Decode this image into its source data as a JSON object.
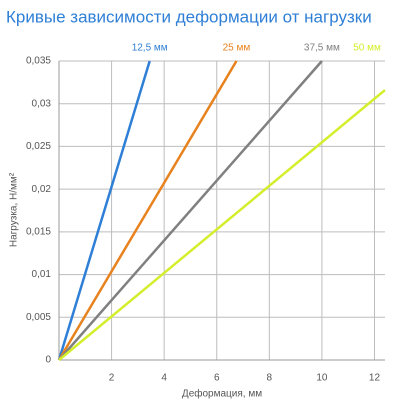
{
  "chart_data": {
    "type": "line",
    "title": "Кривые зависимости деформации от нагрузки",
    "xlabel": "Деформация, мм",
    "ylabel": "Нагрузка, Н/мм²",
    "xlim": [
      0,
      12.4
    ],
    "xticks": [
      2,
      4,
      6,
      8,
      10,
      12
    ],
    "ylim": [
      0,
      0.035
    ],
    "yticks": [
      0,
      {
        "value": 0.005,
        "label": "0,005"
      },
      {
        "value": 0.01,
        "label": "0,01"
      },
      {
        "value": 0.015,
        "label": "0,015"
      },
      {
        "value": 0.02,
        "label": "0,02"
      },
      {
        "value": 0.025,
        "label": "0,025"
      },
      {
        "value": 0.03,
        "label": "0,03"
      },
      {
        "value": 0.035,
        "label": "0,035"
      }
    ],
    "grid": true,
    "series": [
      {
        "name": "12,5 мм",
        "color": "#2f7fd6",
        "x": [
          0,
          3.45
        ],
        "values": [
          0,
          0.035
        ]
      },
      {
        "name": "25 мм",
        "color": "#e8821e",
        "x": [
          0,
          6.75
        ],
        "values": [
          0,
          0.035
        ]
      },
      {
        "name": "37,5 мм",
        "color": "#808080",
        "x": [
          0,
          10.0
        ],
        "values": [
          0,
          0.035
        ]
      },
      {
        "name": "50 мм",
        "color": "#d4ee2c",
        "x": [
          0,
          12.4
        ],
        "values": [
          0,
          0.0316
        ]
      }
    ]
  }
}
